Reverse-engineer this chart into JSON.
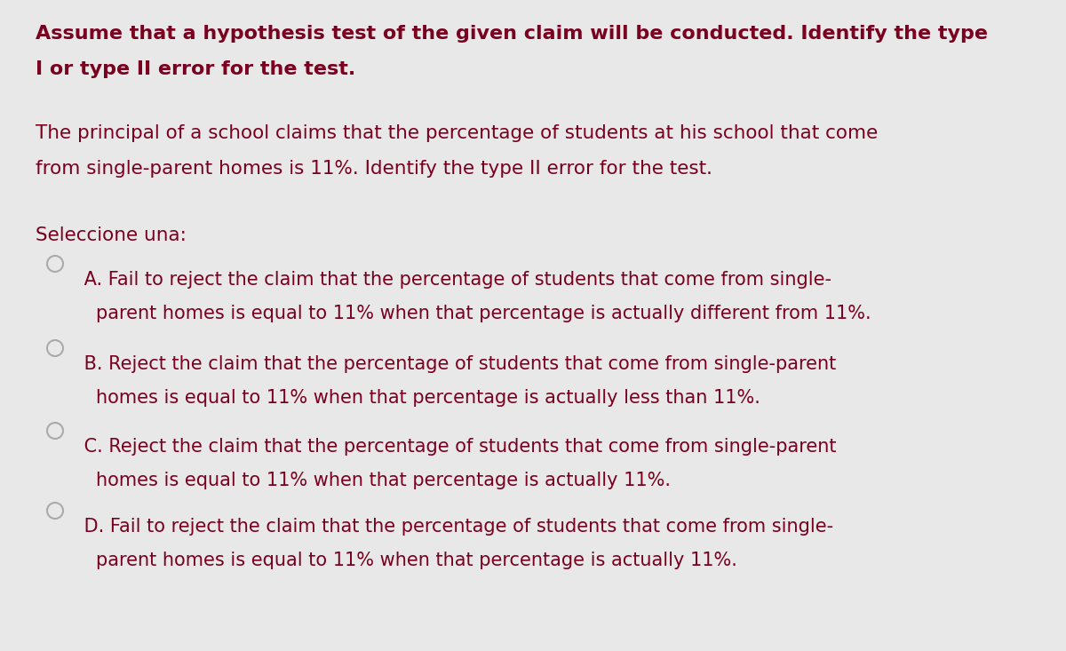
{
  "background_color": "#e8e8e8",
  "text_color": "#7a0020",
  "circle_edge_color": "#aaaaaa",
  "circle_fill_color": "#e8e8e8",
  "title_line1": "Assume that a hypothesis test of the given claim will be conducted. Identify the type",
  "title_line2": "I or type II error for the test.",
  "body_line1": "The principal of a school claims that the percentage of students at his school that come",
  "body_line2": "from single-parent homes is 11%. Identify the type II error for the test.",
  "seleccione": "Seleccione una:",
  "option_A_line1": " A. Fail to reject the claim that the percentage of students that come from single-",
  "option_A_line2": "parent homes is equal to 11% when that percentage is actually different from 11%.",
  "option_B_line1": " B. Reject the claim that the percentage of students that come from single-parent",
  "option_B_line2": "homes is equal to 11% when that percentage is actually less than 11%.",
  "option_C_line1": " C. Reject the claim that the percentage of students that come from single-parent",
  "option_C_line2": "homes is equal to 11% when that percentage is actually 11%.",
  "option_D_line1": " D. Fail to reject the claim that the percentage of students that come from single-",
  "option_D_line2": "parent homes is equal to 11% when that percentage is actually 11%.",
  "title_fontsize": 16,
  "body_fontsize": 15.5,
  "option_fontsize": 15,
  "seleccione_fontsize": 15.5,
  "fig_width": 12.0,
  "fig_height": 7.33,
  "dpi": 100
}
